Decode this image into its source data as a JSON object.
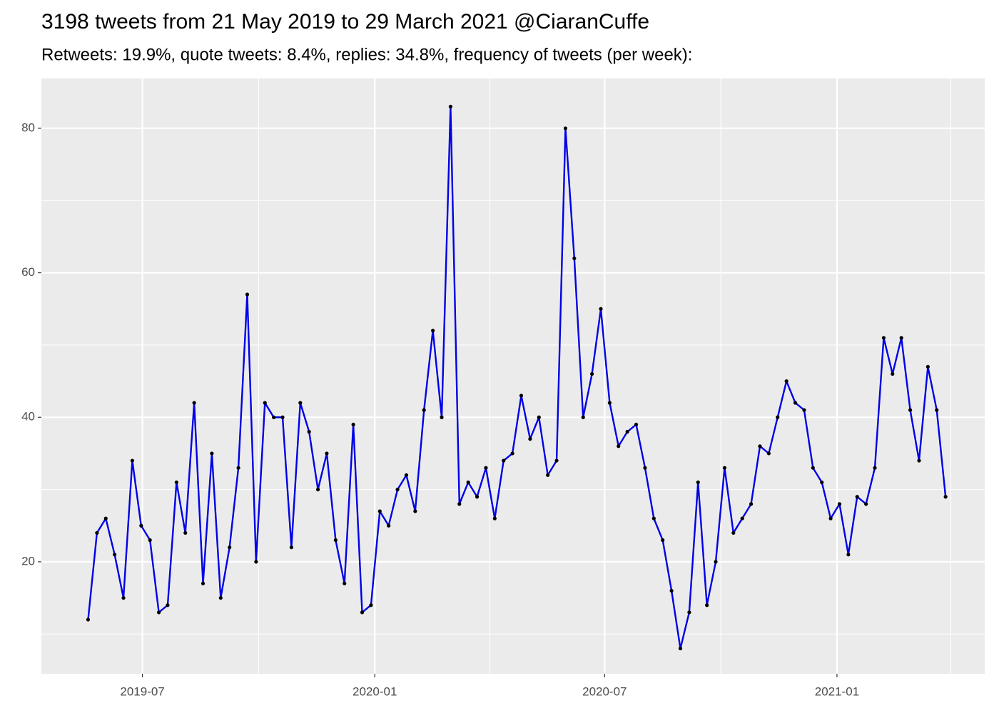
{
  "chart_data": {
    "type": "line",
    "title": "3198 tweets from 21 May 2019 to 29 March 2021 @CiaranCuffe",
    "subtitle": "Retweets: 19.9%, quote tweets: 8.4%, replies: 34.8%, frequency of tweets (per week):",
    "x": [
      "2019-05-19",
      "2019-05-26",
      "2019-06-02",
      "2019-06-09",
      "2019-06-16",
      "2019-06-23",
      "2019-06-30",
      "2019-07-07",
      "2019-07-14",
      "2019-07-21",
      "2019-07-28",
      "2019-08-04",
      "2019-08-11",
      "2019-08-18",
      "2019-08-25",
      "2019-09-01",
      "2019-09-08",
      "2019-09-15",
      "2019-09-22",
      "2019-09-29",
      "2019-10-06",
      "2019-10-13",
      "2019-10-20",
      "2019-10-27",
      "2019-11-03",
      "2019-11-10",
      "2019-11-17",
      "2019-11-24",
      "2019-12-01",
      "2019-12-08",
      "2019-12-15",
      "2019-12-22",
      "2019-12-29",
      "2020-01-05",
      "2020-01-12",
      "2020-01-19",
      "2020-01-26",
      "2020-02-02",
      "2020-02-09",
      "2020-02-16",
      "2020-02-23",
      "2020-03-01",
      "2020-03-08",
      "2020-03-15",
      "2020-03-22",
      "2020-03-29",
      "2020-04-05",
      "2020-04-12",
      "2020-04-19",
      "2020-04-26",
      "2020-05-03",
      "2020-05-10",
      "2020-05-17",
      "2020-05-24",
      "2020-05-31",
      "2020-06-07",
      "2020-06-14",
      "2020-06-21",
      "2020-06-28",
      "2020-07-05",
      "2020-07-12",
      "2020-07-19",
      "2020-07-26",
      "2020-08-02",
      "2020-08-09",
      "2020-08-16",
      "2020-08-23",
      "2020-08-30",
      "2020-09-06",
      "2020-09-13",
      "2020-09-20",
      "2020-09-27",
      "2020-10-04",
      "2020-10-11",
      "2020-10-18",
      "2020-10-25",
      "2020-11-01",
      "2020-11-08",
      "2020-11-15",
      "2020-11-22",
      "2020-11-29",
      "2020-12-06",
      "2020-12-13",
      "2020-12-20",
      "2020-12-27",
      "2021-01-03",
      "2021-01-10",
      "2021-01-17",
      "2021-01-24",
      "2021-01-31",
      "2021-02-07",
      "2021-02-14",
      "2021-02-21",
      "2021-02-28",
      "2021-03-07",
      "2021-03-14",
      "2021-03-21",
      "2021-03-28"
    ],
    "series": [
      {
        "color": "#0000e6",
        "values": [
          12,
          24,
          26,
          21,
          15,
          34,
          25,
          23,
          13,
          14,
          31,
          24,
          42,
          17,
          35,
          15,
          22,
          33,
          57,
          20,
          42,
          40,
          40,
          22,
          42,
          38,
          30,
          35,
          23,
          17,
          39,
          13,
          14,
          27,
          25,
          30,
          32,
          27,
          41,
          52,
          40,
          83,
          28,
          31,
          29,
          33,
          26,
          34,
          35,
          43,
          37,
          40,
          32,
          34,
          80,
          62,
          40,
          46,
          55,
          42,
          36,
          38,
          39,
          33,
          26,
          23,
          16,
          8,
          13,
          31,
          14,
          20,
          33,
          24,
          26,
          28,
          36,
          35,
          40,
          45,
          42,
          41,
          33,
          31,
          26,
          28,
          21,
          29,
          28,
          33,
          51,
          46,
          51,
          41,
          34,
          47,
          41,
          29
        ]
      }
    ],
    "xlim": [
      "2019-04-12",
      "2021-04-28"
    ],
    "xticks": [
      {
        "value": "2019-07-01",
        "label": "2019-07"
      },
      {
        "value": "2020-01-01",
        "label": "2020-01"
      },
      {
        "value": "2020-07-01",
        "label": "2020-07"
      },
      {
        "value": "2021-01-01",
        "label": "2021-01"
      }
    ],
    "x_minor_ticks": [
      "2019-10-01",
      "2020-04-01",
      "2020-10-01",
      "2021-04-01"
    ],
    "ylim": [
      4.5,
      86.9
    ],
    "yticks": [
      20,
      40,
      60,
      80
    ],
    "y_minor_ticks": [
      10,
      30,
      50,
      70
    ],
    "grid": true
  }
}
